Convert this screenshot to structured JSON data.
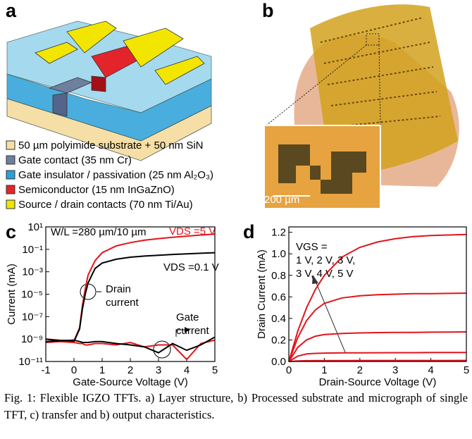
{
  "panel_labels": [
    "a",
    "b",
    "c",
    "d"
  ],
  "layers": [
    {
      "label": "50 µm polyimide substrate + 50 nm SiN",
      "color": "#f6dfa6"
    },
    {
      "label": "Gate contact (35 nm Cr)",
      "color": "#6f7f9f"
    },
    {
      "label": "Gate insulator / passivation (25 nm Al₂O₃)",
      "color": "#2aa0d8"
    },
    {
      "label": "Semiconductor (15 nm InGaZnO)",
      "color": "#e3242b"
    },
    {
      "label": "Source / drain contacts (70 nm Ti/Au)",
      "color": "#f2e600"
    }
  ],
  "inset_scale": "200 µm",
  "chart_data": [
    {
      "type": "line",
      "ylog": true,
      "x_label": "Gate-Source Voltage (V)",
      "y_label": "Current (mA)",
      "xlim": [
        -1,
        5
      ],
      "xticks": [
        -1,
        0,
        1,
        2,
        3,
        4,
        5
      ],
      "ylim": [
        1e-11,
        10
      ],
      "yticks": [
        {
          "value": 1e-11,
          "label": "10⁻¹¹"
        },
        {
          "value": 1e-09,
          "label": "10⁻⁹"
        },
        {
          "value": 1e-07,
          "label": "10⁻⁷"
        },
        {
          "value": 1e-05,
          "label": "10⁻⁵"
        },
        {
          "value": 0.001,
          "label": "10⁻³"
        },
        {
          "value": 0.1,
          "label": "10⁻¹"
        },
        {
          "value": 10,
          "label": "10¹"
        }
      ],
      "x": [
        -1,
        -0.5,
        0,
        0.2,
        0.3,
        0.4,
        0.5,
        0.75,
        1,
        1.5,
        2,
        2.5,
        3,
        3.5,
        4,
        4.5,
        5
      ],
      "series": [
        {
          "name": "VDS =5 V",
          "color": "#e3141b",
          "values": [
            1e-09,
            8e-10,
            7e-10,
            1e-08,
            1e-06,
            3e-05,
            0.0005,
            0.01,
            0.05,
            0.2,
            0.4,
            0.65,
            0.9,
            1.2,
            1.5,
            1.9,
            2.3
          ]
        },
        {
          "name": "VDS =0.1 V",
          "color": "#000000",
          "values": [
            1e-09,
            7e-10,
            6e-10,
            8e-09,
            5e-07,
            1e-05,
            0.0001,
            0.002,
            0.006,
            0.013,
            0.02,
            0.025,
            0.03,
            0.035,
            0.04,
            0.045,
            0.05
          ]
        },
        {
          "color": "#e3141b",
          "values": [
            5e-10,
            6e-10,
            5e-10,
            4e-10,
            4e-10,
            3e-10,
            3e-10,
            4e-10,
            4e-10,
            3e-10,
            5e-10,
            2e-10,
            3e-10,
            3e-10,
            1.5e-11,
            4e-10,
            8e-10
          ]
        },
        {
          "color": "#000000",
          "values": [
            6e-10,
            7e-10,
            8e-10,
            6e-10,
            5e-10,
            5e-10,
            5e-10,
            6e-10,
            6e-10,
            4e-10,
            3e-10,
            2e-10,
            6e-11,
            4e-10,
            1e-10,
            3e-10,
            1.5e-09
          ]
        }
      ],
      "annotations": [
        [
          "W/L =280 µm/10 µm"
        ],
        [
          "Drain",
          "current"
        ],
        [
          "Gate",
          "current"
        ]
      ]
    },
    {
      "type": "line",
      "ylog": false,
      "x_label": "Drain-Source Voltage (V)",
      "y_label": "Drain Current (mA)",
      "xlim": [
        0,
        5
      ],
      "xticks": [
        0,
        1,
        2,
        3,
        4,
        5
      ],
      "ylim": [
        0,
        1.25
      ],
      "yticks": [
        {
          "value": 0,
          "label": "0.0"
        },
        0.2,
        0.4,
        0.6,
        0.8,
        {
          "value": 1,
          "label": "1.0"
        },
        1.2
      ],
      "x": [
        0,
        0.25,
        0.5,
        0.75,
        1,
        1.5,
        2,
        2.5,
        3,
        3.5,
        4,
        4.5,
        5
      ],
      "series": [
        {
          "color": "#e3141b",
          "values": [
            0,
            0.005,
            0.007,
            0.008,
            0.008,
            0.008,
            0.009,
            0.009,
            0.009,
            0.009,
            0.009,
            0.009,
            0.01
          ]
        },
        {
          "color": "#e3141b",
          "values": [
            0,
            0.05,
            0.07,
            0.075,
            0.078,
            0.08,
            0.08,
            0.081,
            0.082,
            0.082,
            0.083,
            0.083,
            0.084
          ]
        },
        {
          "color": "#e3141b",
          "values": [
            0,
            0.13,
            0.2,
            0.235,
            0.25,
            0.26,
            0.265,
            0.268,
            0.27,
            0.27,
            0.272,
            0.273,
            0.275
          ]
        },
        {
          "color": "#e3141b",
          "values": [
            0,
            0.22,
            0.38,
            0.48,
            0.54,
            0.59,
            0.61,
            0.62,
            0.625,
            0.63,
            0.63,
            0.632,
            0.635
          ]
        },
        {
          "color": "#e3141b",
          "values": [
            0,
            0.28,
            0.5,
            0.67,
            0.8,
            0.97,
            1.06,
            1.11,
            1.14,
            1.16,
            1.17,
            1.175,
            1.18
          ]
        }
      ],
      "annotations": [
        [
          "VGS =",
          "1 V, 2 V, 3 V,",
          "3 V, 4 V, 5 V"
        ]
      ]
    }
  ],
  "caption": "Fig. 1: Flexible IGZO TFTs. a) Layer structure, b) Processed substrate and micrograph of single TFT, c) transfer and b) output characteristics."
}
